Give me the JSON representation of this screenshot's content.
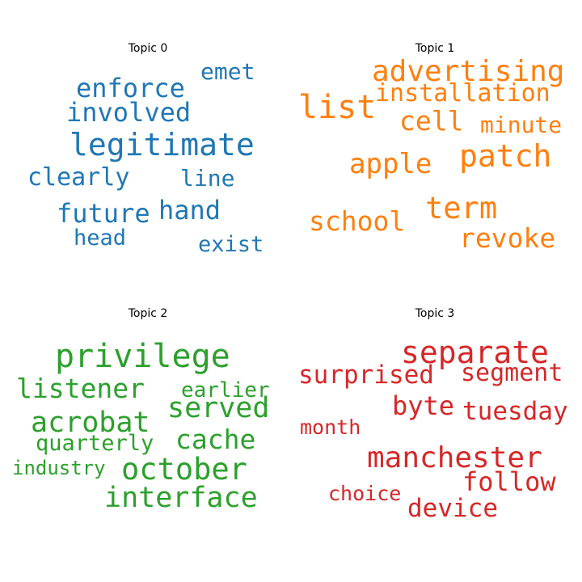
{
  "topics": [
    {
      "title": "Topic 0",
      "color": "#1f77b4",
      "words": [
        "legitimate",
        "enforce",
        "involved",
        "emet",
        "clearly",
        "line",
        "future",
        "hand",
        "head",
        "exist"
      ]
    },
    {
      "title": "Topic 1",
      "color": "#ff7f0e",
      "words": [
        "advertising",
        "installation",
        "list",
        "cell",
        "minute",
        "patch",
        "apple",
        "term",
        "school",
        "revoke"
      ]
    },
    {
      "title": "Topic 2",
      "color": "#2ca02c",
      "words": [
        "privilege",
        "listener",
        "earlier",
        "served",
        "acrobat",
        "cache",
        "quarterly",
        "october",
        "industry",
        "interface"
      ]
    },
    {
      "title": "Topic 3",
      "color": "#d62728",
      "words": [
        "separate",
        "surprised",
        "segment",
        "byte",
        "tuesday",
        "month",
        "manchester",
        "follow",
        "choice",
        "device"
      ]
    }
  ]
}
